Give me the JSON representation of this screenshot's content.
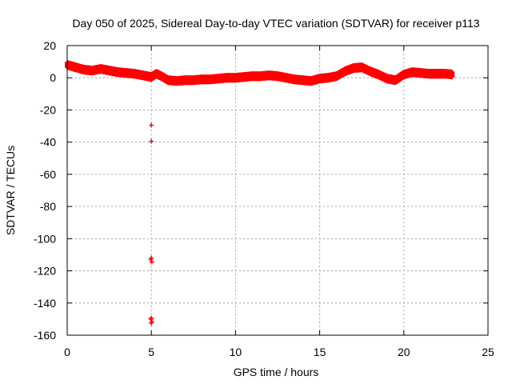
{
  "chart_data": {
    "type": "scatter",
    "title": "Day 050 of 2025, Sidereal Day-to-day VTEC variation (SDTVAR) for receiver p113",
    "xlabel": "GPS time / hours",
    "ylabel": "SDTVAR / TECUs",
    "xlim": [
      0,
      25
    ],
    "ylim": [
      -160,
      20
    ],
    "x_ticks": [
      0,
      5,
      10,
      15,
      20,
      25
    ],
    "y_ticks": [
      20,
      0,
      -20,
      -40,
      -60,
      -80,
      -100,
      -120,
      -140,
      -160
    ],
    "x_tick_labels": [
      "0",
      "5",
      "10",
      "15",
      "20",
      "25"
    ],
    "y_tick_labels": [
      "20",
      "0",
      "-20",
      "-40",
      "-60",
      "-80",
      "-100",
      "-120",
      "-140",
      "-160"
    ],
    "grid": true,
    "marker": "+",
    "series": [
      {
        "name": "SDTVAR",
        "color": "#ff0000",
        "band": {
          "x": [
            0,
            0.5,
            1,
            1.5,
            2,
            2.5,
            3,
            3.5,
            4,
            4.5,
            5,
            5.3,
            5.6,
            6,
            6.5,
            7,
            7.5,
            8,
            8.5,
            9,
            9.5,
            10,
            10.5,
            11,
            11.5,
            12,
            12.5,
            13,
            13.5,
            14,
            14.5,
            15,
            15.5,
            16,
            16.5,
            17,
            17.5,
            18,
            18.5,
            19,
            19.5,
            20,
            20.5,
            21,
            21.5,
            22,
            22.5,
            22.9
          ],
          "y": [
            8,
            6.5,
            5,
            4.5,
            5.5,
            4.5,
            3.5,
            3,
            2.5,
            1.5,
            0.5,
            2.5,
            1,
            -1.5,
            -2,
            -1.5,
            -1.5,
            -1,
            -1,
            -0.5,
            0,
            0,
            0.5,
            1,
            1,
            1.5,
            1,
            0,
            -1,
            -1.5,
            -2,
            -0.5,
            0,
            1,
            4,
            6,
            6.5,
            4,
            2,
            -0.5,
            -1.5,
            2,
            3.5,
            3,
            2.5,
            2.5,
            2.5,
            2
          ],
          "spread": 2.5
        },
        "outliers": [
          {
            "x": 5.0,
            "y": -29.5
          },
          {
            "x": 5.0,
            "y": -39.5
          },
          {
            "x": 4.97,
            "y": -113.0
          },
          {
            "x": 5.03,
            "y": -114.5
          },
          {
            "x": 5.0,
            "y": -112.0
          },
          {
            "x": 4.97,
            "y": -150.0
          },
          {
            "x": 5.03,
            "y": -151.5
          },
          {
            "x": 5.0,
            "y": -152.5
          },
          {
            "x": 5.0,
            "y": -149.5
          }
        ]
      }
    ]
  }
}
